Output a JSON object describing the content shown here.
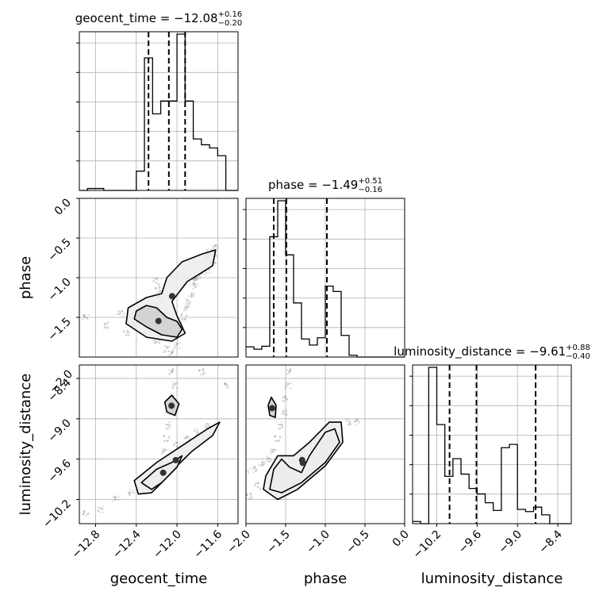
{
  "chart_data": {
    "type": "corner",
    "parameters": [
      "geocent_time",
      "phase",
      "luminosity_distance"
    ],
    "titles": [
      {
        "name": "geocent_time",
        "median": "−12.08",
        "upper": "+0.16",
        "lower": "−0.20"
      },
      {
        "name": "phase",
        "median": "−1.49",
        "upper": "+0.51",
        "lower": "−0.16"
      },
      {
        "name": "luminosity_distance",
        "median": "−9.61",
        "upper": "+0.88",
        "lower": "−0.40"
      }
    ],
    "ranges": {
      "geocent_time": [
        -12.96,
        -11.4
      ],
      "phase": [
        -2.0,
        0.0
      ],
      "luminosity_distance": [
        -10.56,
        -8.2
      ]
    },
    "ticks": {
      "geocent_time": [
        {
          "v": -12.8,
          "label": "−12.8"
        },
        {
          "v": -12.4,
          "label": "−12.4"
        },
        {
          "v": -12.0,
          "label": "−12.0"
        },
        {
          "v": -11.6,
          "label": "−11.6"
        }
      ],
      "phase": [
        {
          "v": -2.0,
          "label": "−2.0"
        },
        {
          "v": -1.5,
          "label": "−1.5"
        },
        {
          "v": -1.0,
          "label": "−1.0"
        },
        {
          "v": -0.5,
          "label": "−0.5"
        },
        {
          "v": 0.0,
          "label": "0.0"
        }
      ],
      "luminosity_distance": [
        {
          "v": -10.2,
          "label": "−10.2"
        },
        {
          "v": -9.6,
          "label": "−9.6"
        },
        {
          "v": -9.0,
          "label": "−9.0"
        },
        {
          "v": -8.4,
          "label": "−8.4"
        }
      ],
      "luminosity_distance_y": [
        {
          "v": -8.4,
          "label": "−8.4"
        },
        {
          "v": -9.0,
          "label": "−9.0"
        },
        {
          "v": -9.6,
          "label": "−9.6"
        },
        {
          "v": -10.2,
          "label": "−10.2"
        }
      ],
      "phase_y": [
        {
          "v": 0.0,
          "label": "0.0"
        },
        {
          "v": -0.5,
          "label": "−0.5"
        },
        {
          "v": -1.0,
          "label": "−1.0"
        },
        {
          "v": -1.5,
          "label": "−1.5"
        }
      ],
      "ld_corner_label": {
        "v": -2.0,
        "label": "−2.0"
      }
    },
    "histograms": {
      "geocent_time": {
        "edges": [
          -12.96,
          -12.88,
          -12.8,
          -12.72,
          -12.64,
          -12.56,
          -12.48,
          -12.4,
          -12.32,
          -12.24,
          -12.16,
          -12.08,
          -12.0,
          -11.92,
          -11.84,
          -11.76,
          -11.68,
          -11.6,
          -11.52,
          -11.44,
          -11.4
        ],
        "counts": [
          0,
          0.3,
          0.3,
          0,
          0,
          0,
          0,
          3.0,
          20.6,
          11.9,
          13.9,
          13.9,
          24.3,
          13.9,
          8.0,
          7.1,
          6.6,
          5.4,
          0,
          0
        ]
      },
      "phase": {
        "edges": [
          -2.0,
          -1.9,
          -1.8,
          -1.7,
          -1.6,
          -1.5,
          -1.4,
          -1.3,
          -1.2,
          -1.1,
          -1.0,
          -0.9,
          -0.8,
          -0.7,
          -0.6,
          -0.5,
          -0.4,
          -0.3,
          -0.2,
          -0.1,
          0.0
        ],
        "counts": [
          1.7,
          1.3,
          1.8,
          20.0,
          26.0,
          17.0,
          9.0,
          3.0,
          2.0,
          3.2,
          11.8,
          10.9,
          3.6,
          0.3,
          0,
          0,
          0,
          0,
          0,
          0
        ]
      },
      "luminosity_distance": {
        "edges": [
          -10.56,
          -10.44,
          -10.32,
          -10.2,
          -10.08,
          -9.96,
          -9.84,
          -9.72,
          -9.6,
          -9.48,
          -9.36,
          -9.24,
          -9.12,
          -9.0,
          -8.88,
          -8.76,
          -8.64,
          -8.52,
          -8.4,
          -8.28,
          -8.2
        ],
        "counts": [
          0.2,
          0,
          14.2,
          9.0,
          4.3,
          5.9,
          4.5,
          3.2,
          2.7,
          1.9,
          1.2,
          6.9,
          7.2,
          1.3,
          1.1,
          1.5,
          0.8,
          0,
          0,
          0
        ]
      }
    },
    "quantiles": {
      "geocent_time": [
        -12.28,
        -12.08,
        -11.92
      ],
      "phase": [
        -1.65,
        -1.49,
        -0.98
      ],
      "luminosity_distance": [
        -10.01,
        -9.61,
        -8.73
      ]
    },
    "scatter_2d": {
      "geocent_time_phase": {
        "samples": [
          [
            -12.05,
            -1.95
          ],
          [
            -12.0,
            -1.85
          ],
          [
            -12.02,
            -1.75
          ],
          [
            -12.0,
            -1.7
          ],
          [
            -11.96,
            -1.6
          ],
          [
            -11.93,
            -1.5
          ],
          [
            -11.9,
            -1.4
          ],
          [
            -11.88,
            -1.3
          ],
          [
            -11.86,
            -1.2
          ],
          [
            -11.84,
            -1.1
          ],
          [
            -11.8,
            -1.0
          ],
          [
            -11.75,
            -0.95
          ],
          [
            -11.7,
            -0.9
          ],
          [
            -11.65,
            -0.8
          ],
          [
            -11.63,
            -0.7
          ],
          [
            -11.62,
            -0.62
          ],
          [
            -12.2,
            -1.05
          ],
          [
            -12.18,
            -1.15
          ],
          [
            -12.15,
            -1.25
          ],
          [
            -12.2,
            -1.35
          ],
          [
            -12.3,
            -1.5
          ],
          [
            -12.2,
            -1.8
          ],
          [
            -12.1,
            -1.9
          ],
          [
            -12.4,
            -1.6
          ],
          [
            -12.5,
            -1.7
          ],
          [
            -12.7,
            -1.6
          ],
          [
            -12.9,
            -1.5
          ],
          [
            -12.55,
            -1.45
          ],
          [
            -12.35,
            -1.35
          ],
          [
            -11.68,
            -0.68
          ],
          [
            -11.7,
            -0.72
          ],
          [
            -11.82,
            -1.05
          ]
        ],
        "contours": [
          [
            [
              -12.4,
              -1.42
            ],
            [
              -12.3,
              -1.35
            ],
            [
              -12.2,
              -1.38
            ],
            [
              -12.1,
              -1.5
            ],
            [
              -12.0,
              -1.55
            ],
            [
              -11.95,
              -1.65
            ],
            [
              -12.0,
              -1.75
            ],
            [
              -12.15,
              -1.72
            ],
            [
              -12.3,
              -1.62
            ],
            [
              -12.42,
              -1.52
            ]
          ],
          [
            [
              -12.48,
              -1.38
            ],
            [
              -12.3,
              -1.25
            ],
            [
              -12.15,
              -1.2
            ],
            [
              -12.1,
              -1.0
            ],
            [
              -11.95,
              -0.8
            ],
            [
              -11.75,
              -0.7
            ],
            [
              -11.62,
              -0.65
            ],
            [
              -11.65,
              -0.85
            ],
            [
              -11.9,
              -1.05
            ],
            [
              -12.05,
              -1.3
            ],
            [
              -12.0,
              -1.48
            ],
            [
              -11.92,
              -1.7
            ],
            [
              -12.05,
              -1.8
            ],
            [
              -12.3,
              -1.75
            ],
            [
              -12.5,
              -1.58
            ]
          ]
        ]
      },
      "geocent_time_luminosity_distance": {
        "samples": [
          [
            -12.05,
            -8.3
          ],
          [
            -12.02,
            -8.5
          ],
          [
            -12.04,
            -8.7
          ],
          [
            -12.06,
            -8.9
          ],
          [
            -12.08,
            -9.1
          ],
          [
            -12.1,
            -9.3
          ],
          [
            -12.12,
            -9.5
          ],
          [
            -12.15,
            -9.7
          ],
          [
            -12.2,
            -9.85
          ],
          [
            -12.25,
            -9.95
          ],
          [
            -12.45,
            -10.1
          ],
          [
            -12.6,
            -10.2
          ],
          [
            -12.75,
            -10.35
          ],
          [
            -12.9,
            -10.4
          ],
          [
            -11.8,
            -9.2
          ],
          [
            -11.9,
            -9.3
          ],
          [
            -12.0,
            -9.4
          ],
          [
            -11.75,
            -8.3
          ],
          [
            -11.5,
            -8.5
          ],
          [
            -11.7,
            -9.1
          ]
        ],
        "contours": [
          [
            [
              -12.05,
              -8.65
            ],
            [
              -11.98,
              -8.78
            ],
            [
              -12.02,
              -8.95
            ],
            [
              -12.1,
              -8.9
            ],
            [
              -12.12,
              -8.75
            ]
          ],
          [
            [
              -12.35,
              -9.95
            ],
            [
              -12.2,
              -9.75
            ],
            [
              -12.05,
              -9.65
            ],
            [
              -11.95,
              -9.55
            ],
            [
              -12.0,
              -9.72
            ],
            [
              -12.15,
              -9.95
            ],
            [
              -12.25,
              -10.05
            ]
          ],
          [
            [
              -12.42,
              -9.92
            ],
            [
              -12.2,
              -9.65
            ],
            [
              -11.95,
              -9.4
            ],
            [
              -11.7,
              -9.15
            ],
            [
              -11.58,
              -9.05
            ],
            [
              -11.65,
              -9.25
            ],
            [
              -11.85,
              -9.48
            ],
            [
              -12.0,
              -9.7
            ],
            [
              -12.15,
              -9.95
            ],
            [
              -12.25,
              -10.1
            ],
            [
              -12.38,
              -10.12
            ]
          ]
        ]
      },
      "phase_luminosity_distance": {
        "samples": [
          [
            -1.45,
            -8.3
          ],
          [
            -1.47,
            -8.5
          ],
          [
            -1.5,
            -8.7
          ],
          [
            -1.52,
            -8.9
          ],
          [
            -1.55,
            -9.1
          ],
          [
            -1.6,
            -9.3
          ],
          [
            -1.65,
            -9.5
          ],
          [
            -1.7,
            -9.6
          ],
          [
            -1.8,
            -9.65
          ],
          [
            -1.9,
            -9.75
          ],
          [
            -2.0,
            -9.8
          ],
          [
            -1.3,
            -9.5
          ],
          [
            -1.1,
            -9.3
          ],
          [
            -0.9,
            -9.1
          ],
          [
            -0.7,
            -9.05
          ],
          [
            -0.6,
            -9.05
          ],
          [
            -1.85,
            -10.0
          ],
          [
            -1.95,
            -10.15
          ]
        ],
        "contours": [
          [
            [
              -1.68,
              -8.68
            ],
            [
              -1.62,
              -8.8
            ],
            [
              -1.63,
              -8.98
            ],
            [
              -1.7,
              -8.95
            ],
            [
              -1.72,
              -8.8
            ]
          ],
          [
            [
              -1.65,
              -9.75
            ],
            [
              -1.55,
              -9.6
            ],
            [
              -1.45,
              -9.72
            ],
            [
              -1.3,
              -9.8
            ],
            [
              -1.2,
              -9.55
            ],
            [
              -1.0,
              -9.2
            ],
            [
              -0.88,
              -9.15
            ],
            [
              -0.82,
              -9.35
            ],
            [
              -1.0,
              -9.65
            ],
            [
              -1.3,
              -9.95
            ],
            [
              -1.55,
              -10.1
            ],
            [
              -1.7,
              -10.05
            ]
          ],
          [
            [
              -1.75,
              -9.85
            ],
            [
              -1.6,
              -9.55
            ],
            [
              -1.4,
              -9.55
            ],
            [
              -1.2,
              -9.35
            ],
            [
              -0.95,
              -9.05
            ],
            [
              -0.8,
              -9.05
            ],
            [
              -0.78,
              -9.35
            ],
            [
              -1.0,
              -9.7
            ],
            [
              -1.35,
              -10.05
            ],
            [
              -1.6,
              -10.2
            ],
            [
              -1.78,
              -10.05
            ]
          ]
        ]
      }
    }
  }
}
